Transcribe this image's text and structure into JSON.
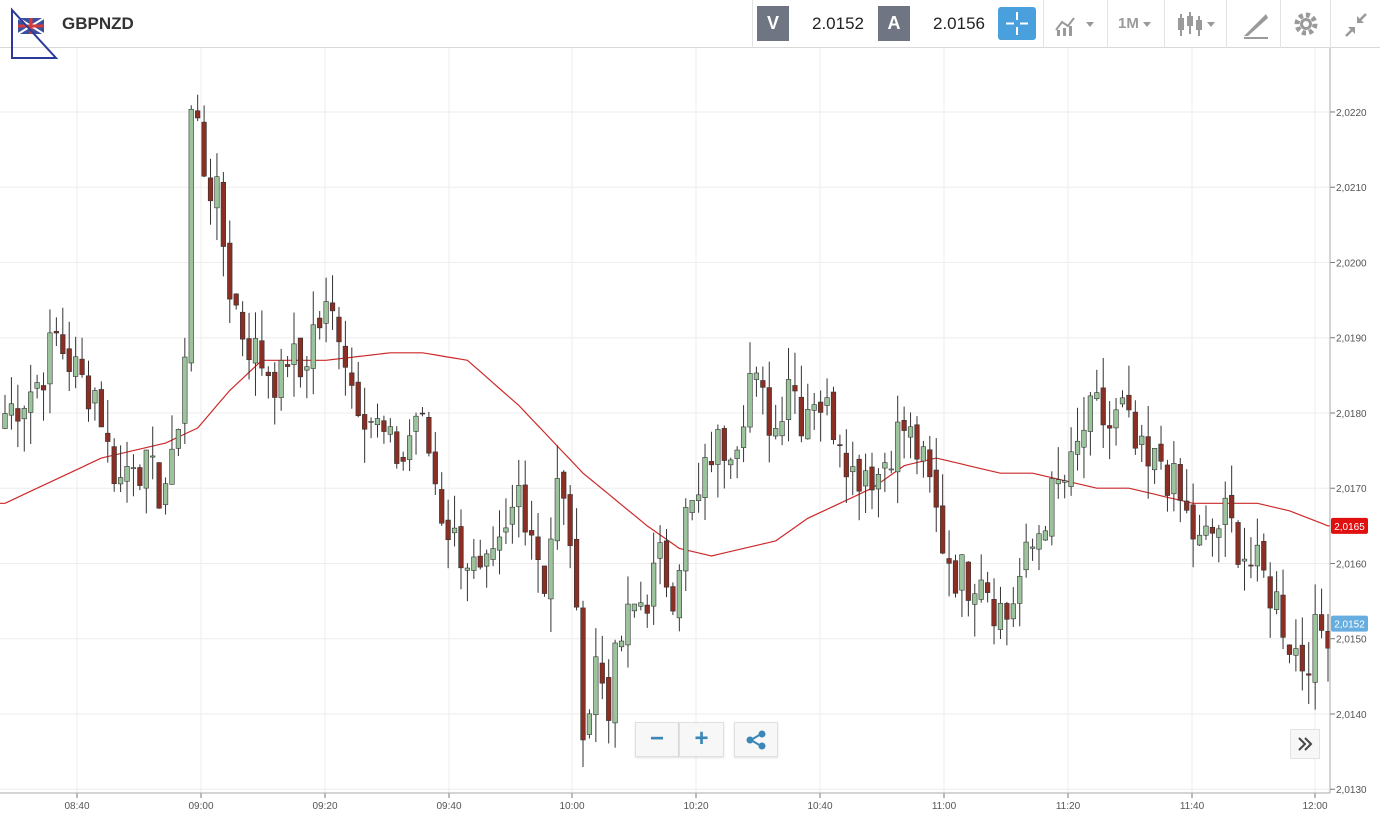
{
  "header": {
    "symbol": "GBPNZD",
    "bid_label": "V",
    "bid_value": "2.0152",
    "ask_label": "A",
    "ask_value": "2.0156",
    "timeframe": "1M",
    "icons": [
      "crosshair-icon",
      "indicators-icon",
      "timeframe-dropdown",
      "candlestick-icon",
      "drawing-icon",
      "gear-icon",
      "collapse-icon"
    ]
  },
  "colors": {
    "bull": "#9cc49c",
    "bear": "#8b2e24",
    "ma": "#cc2a2a",
    "grid": "#eeeeee",
    "label_box": "#6f7582",
    "accent": "#4aa0dc",
    "current_price": "#66aee0",
    "ma_label": "#e01010"
  },
  "chart_data": {
    "type": "candlestick",
    "timeframe": "1M",
    "x_tick_labels": [
      "08:40",
      "09:00",
      "09:20",
      "09:40",
      "10:00",
      "10:20",
      "10:40",
      "11:00",
      "11:20",
      "11:40",
      "12:00"
    ],
    "y_tick_labels": [
      "2,0220",
      "2,0210",
      "2,0200",
      "2,0190",
      "2,0180",
      "2,0170",
      "2,0160",
      "2,0150",
      "2,0140",
      "2,0130"
    ],
    "y_ticks": [
      2.022,
      2.021,
      2.02,
      2.019,
      2.018,
      2.017,
      2.016,
      2.015,
      2.014,
      2.013
    ],
    "ylim": [
      2.01295,
      2.02285
    ],
    "grid": true,
    "ma_value_label": "2,0165",
    "ma_value": 2.0165,
    "current_price_label": "2,0152",
    "current_price": 2.0152,
    "close_path": [
      [
        0,
        2.018
      ],
      [
        5,
        2.0184
      ],
      [
        8,
        2.019
      ],
      [
        10,
        2.0187
      ],
      [
        12,
        2.0184
      ],
      [
        14,
        2.0183
      ],
      [
        15,
        2.018
      ],
      [
        16,
        2.0175
      ],
      [
        18,
        2.0171
      ],
      [
        20,
        2.0175
      ],
      [
        22,
        2.0172
      ],
      [
        24,
        2.017
      ],
      [
        26,
        2.0172
      ],
      [
        28,
        2.0188
      ],
      [
        29,
        2.022
      ],
      [
        30,
        2.0218
      ],
      [
        31,
        2.0213
      ],
      [
        33,
        2.0208
      ],
      [
        35,
        2.0197
      ],
      [
        37,
        2.0191
      ],
      [
        39,
        2.0188
      ],
      [
        41,
        2.0186
      ],
      [
        43,
        2.0184
      ],
      [
        44,
        2.0188
      ],
      [
        46,
        2.0185
      ],
      [
        48,
        2.0191
      ],
      [
        50,
        2.0193
      ],
      [
        52,
        2.0192
      ],
      [
        54,
        2.0184
      ],
      [
        56,
        2.0181
      ],
      [
        58,
        2.0178
      ],
      [
        60,
        2.0175
      ],
      [
        62,
        2.0174
      ],
      [
        64,
        2.018
      ],
      [
        66,
        2.0175
      ],
      [
        68,
        2.0167
      ],
      [
        70,
        2.0163
      ],
      [
        72,
        2.0161
      ],
      [
        74,
        2.0157
      ],
      [
        76,
        2.0159
      ],
      [
        78,
        2.0163
      ],
      [
        80,
        2.017
      ],
      [
        82,
        2.0165
      ],
      [
        84,
        2.0158
      ],
      [
        86,
        2.017
      ],
      [
        88,
        2.0164
      ],
      [
        89,
        2.0151
      ],
      [
        90,
        2.014
      ],
      [
        91,
        2.0141
      ],
      [
        92,
        2.0147
      ],
      [
        94,
        2.0142
      ],
      [
        96,
        2.015
      ],
      [
        98,
        2.0154
      ],
      [
        100,
        2.0156
      ],
      [
        102,
        2.016
      ],
      [
        104,
        2.0157
      ],
      [
        106,
        2.0166
      ],
      [
        108,
        2.0168
      ],
      [
        110,
        2.0175
      ],
      [
        112,
        2.0176
      ],
      [
        114,
        2.0178
      ],
      [
        116,
        2.0185
      ],
      [
        118,
        2.0181
      ],
      [
        120,
        2.0178
      ],
      [
        122,
        2.0186
      ],
      [
        124,
        2.018
      ],
      [
        126,
        2.0183
      ],
      [
        128,
        2.018
      ],
      [
        130,
        2.0178
      ],
      [
        132,
        2.0172
      ],
      [
        134,
        2.0173
      ],
      [
        136,
        2.0172
      ],
      [
        138,
        2.0176
      ],
      [
        140,
        2.0178
      ],
      [
        142,
        2.0175
      ],
      [
        144,
        2.017
      ],
      [
        146,
        2.0163
      ],
      [
        148,
        2.0159
      ],
      [
        150,
        2.0158
      ],
      [
        152,
        2.016
      ],
      [
        154,
        2.0155
      ],
      [
        156,
        2.0153
      ],
      [
        158,
        2.0158
      ],
      [
        160,
        2.0162
      ],
      [
        162,
        2.0167
      ],
      [
        164,
        2.017
      ],
      [
        166,
        2.0172
      ],
      [
        168,
        2.0178
      ],
      [
        170,
        2.018
      ],
      [
        172,
        2.0178
      ],
      [
        174,
        2.018
      ],
      [
        176,
        2.0175
      ],
      [
        178,
        2.0172
      ],
      [
        180,
        2.0174
      ],
      [
        182,
        2.017
      ],
      [
        184,
        2.0166
      ],
      [
        186,
        2.0162
      ],
      [
        188,
        2.0164
      ],
      [
        190,
        2.0166
      ],
      [
        192,
        2.0163
      ],
      [
        194,
        2.016
      ],
      [
        196,
        2.0158
      ],
      [
        198,
        2.0155
      ],
      [
        200,
        2.015
      ],
      [
        202,
        2.0147
      ],
      [
        204,
        2.015
      ],
      [
        206,
        2.0152
      ]
    ],
    "ma_path": [
      [
        0,
        2.0168
      ],
      [
        15,
        2.0174
      ],
      [
        25,
        2.0176
      ],
      [
        30,
        2.0178
      ],
      [
        35,
        2.0183
      ],
      [
        40,
        2.0187
      ],
      [
        50,
        2.0187
      ],
      [
        60,
        2.0188
      ],
      [
        65,
        2.0188
      ],
      [
        72,
        2.0187
      ],
      [
        80,
        2.0181
      ],
      [
        90,
        2.0172
      ],
      [
        100,
        2.0165
      ],
      [
        105,
        2.0162
      ],
      [
        110,
        2.0161
      ],
      [
        115,
        2.0162
      ],
      [
        120,
        2.0163
      ],
      [
        125,
        2.0166
      ],
      [
        130,
        2.0168
      ],
      [
        135,
        2.017
      ],
      [
        140,
        2.0173
      ],
      [
        145,
        2.0174
      ],
      [
        150,
        2.0173
      ],
      [
        155,
        2.0172
      ],
      [
        160,
        2.0172
      ],
      [
        165,
        2.0171
      ],
      [
        170,
        2.017
      ],
      [
        175,
        2.017
      ],
      [
        180,
        2.0169
      ],
      [
        185,
        2.0168
      ],
      [
        190,
        2.0168
      ],
      [
        195,
        2.0168
      ],
      [
        200,
        2.0167
      ],
      [
        206,
        2.0165
      ]
    ]
  },
  "controls": {
    "zoom_out_label": "−",
    "zoom_in_label": "+"
  }
}
